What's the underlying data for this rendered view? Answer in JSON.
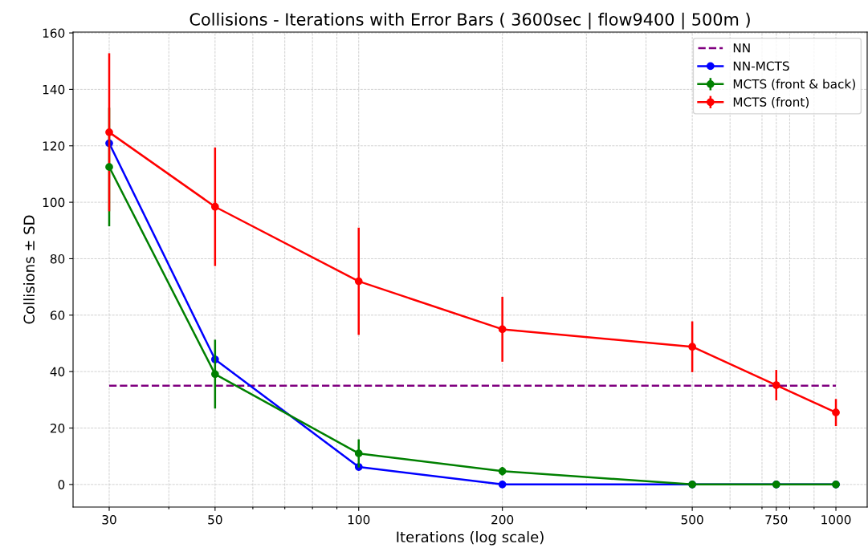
{
  "chart_data": {
    "type": "line",
    "title": "Collisions - Iterations with Error Bars ( 3600sec | flow9400 | 500m )",
    "xlabel": "Iterations (log scale)",
    "ylabel": "Collisions ± SD",
    "log": "x",
    "x": [
      30,
      50,
      100,
      200,
      500,
      750,
      1000
    ],
    "xlim": [
      25.2,
      1163
    ],
    "xticks": [
      30,
      {
        "value": 40,
        "label": null
      },
      50,
      {
        "value": 60,
        "label": null
      },
      {
        "value": 70,
        "label": null
      },
      {
        "value": 80,
        "label": null
      },
      {
        "value": 90,
        "label": null
      },
      100,
      200,
      {
        "value": 300,
        "label": null
      },
      {
        "value": 400,
        "label": null
      },
      500,
      {
        "value": 600,
        "label": null
      },
      {
        "value": 700,
        "label": null
      },
      750,
      {
        "value": 800,
        "label": null
      },
      {
        "value": 900,
        "label": null
      },
      1000
    ],
    "ylim": [
      -8,
      160.3
    ],
    "yticks": [
      0,
      20,
      40,
      60,
      80,
      100,
      120,
      140,
      160
    ],
    "grid": true,
    "legend": "top right",
    "marker": "circle",
    "series": [
      {
        "name": "NN",
        "color": "#800080",
        "x": [
          30,
          1000
        ],
        "values": [
          35,
          35
        ],
        "line_style": "dashed",
        "marker": "none"
      },
      {
        "name": "NN-MCTS",
        "color": "#0000ff",
        "values": [
          120.9,
          44.3,
          6.2,
          0,
          0,
          0,
          0
        ]
      },
      {
        "name": "MCTS (front & back)",
        "color": "#008000",
        "values": [
          112.5,
          39.1,
          11,
          4.7,
          0,
          0,
          0
        ],
        "errors": [
          21,
          12.2,
          5,
          1.5,
          null,
          null,
          null
        ]
      },
      {
        "name": "MCTS (front)",
        "color": "#ff0000",
        "values": [
          124.8,
          98.4,
          72,
          55,
          48.8,
          35.2,
          25.5
        ],
        "errors": [
          28,
          21,
          19,
          11.5,
          9,
          5.4,
          4.8
        ]
      }
    ]
  }
}
